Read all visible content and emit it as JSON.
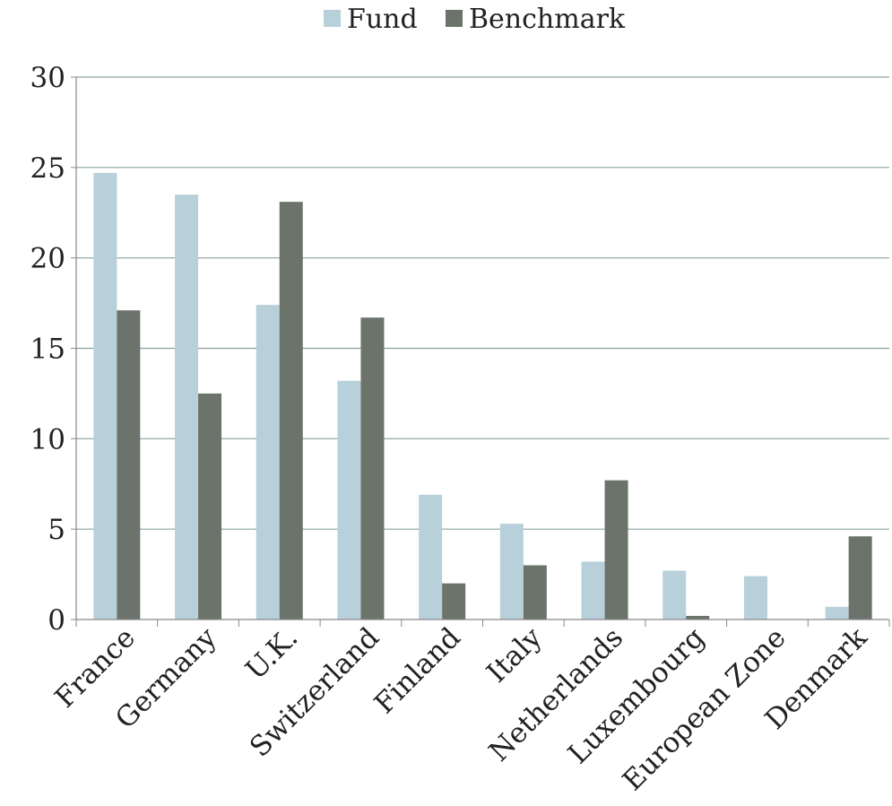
{
  "chart_data": {
    "type": "bar",
    "categories": [
      "France",
      "Germany",
      "U.K.",
      "Switzerland",
      "Finland",
      "Italy",
      "Netherlands",
      "Luxembourg",
      "European Zone",
      "Denmark"
    ],
    "series": [
      {
        "name": "Fund",
        "values": [
          24.7,
          23.5,
          17.4,
          13.2,
          6.9,
          5.3,
          3.2,
          2.7,
          2.4,
          0.7
        ]
      },
      {
        "name": "Benchmark",
        "values": [
          17.1,
          12.5,
          23.1,
          16.7,
          2.0,
          3.0,
          7.7,
          0.2,
          0.0,
          4.6
        ]
      }
    ],
    "ylim": [
      0,
      30
    ],
    "yticks": [
      0,
      5,
      10,
      15,
      20,
      25,
      30
    ],
    "grid": true,
    "legend_position": "top-center",
    "xlabel": "",
    "ylabel": "",
    "title": ""
  },
  "colors": {
    "Fund": "#b7d0d9",
    "Benchmark": "#6b736b",
    "grid": "#8aa0a0",
    "axis": "#888888"
  }
}
